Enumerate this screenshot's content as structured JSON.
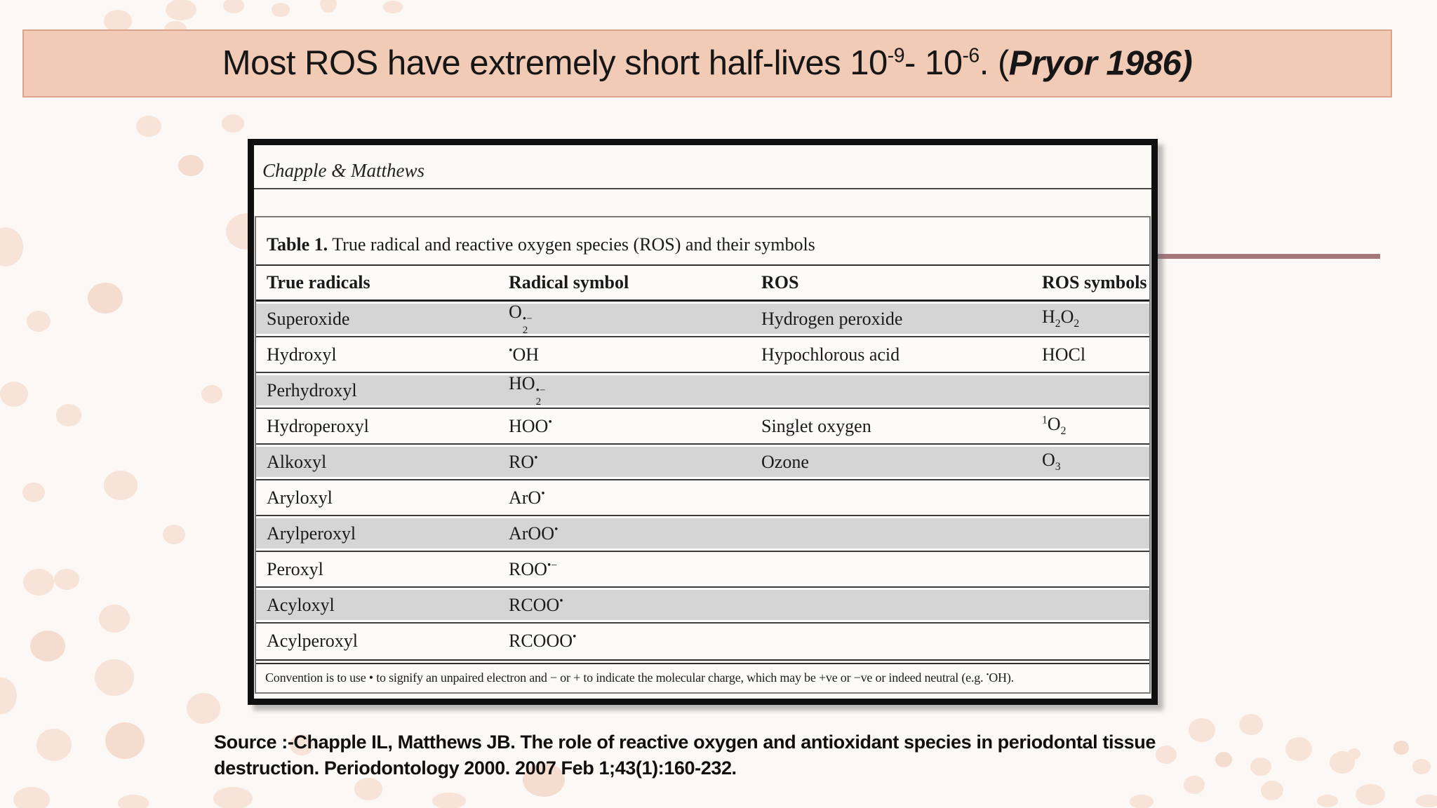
{
  "slide": {
    "title": {
      "main": "Most ROS have extremely short half-lives 10^{-9}- 10^{-6}. (",
      "emphasis": "Pryor 1986)"
    },
    "source_note": "Source :-Chapple IL, Matthews JB. The role of reactive oxygen and antioxidant species in periodontal tissue destruction. Periodontology 2000. 2007 Feb 1;43(1):160-232."
  },
  "figure": {
    "journal_header": "Chapple & Matthews",
    "table": {
      "caption_label": "Table 1.",
      "caption_text": " True radical and reactive oxygen species (ROS) and their symbols",
      "columns": [
        "True radicals",
        "Radical symbol",
        "ROS",
        "ROS symbols"
      ],
      "rows": [
        {
          "radical": "Superoxide",
          "symbol": "O~{2}{•−}",
          "ros": "Hydrogen peroxide",
          "ros_symbol": "H_{2}O_{2}",
          "shaded": true
        },
        {
          "radical": "Hydroxyl",
          "symbol": "^{•}OH",
          "ros": "Hypochlorous acid",
          "ros_symbol": "HOCl",
          "shaded": false
        },
        {
          "radical": "Perhydroxyl",
          "symbol": "HO~{2}{•−}",
          "ros": "",
          "ros_symbol": "",
          "shaded": true
        },
        {
          "radical": "Hydroperoxyl",
          "symbol": "HOO^{•}",
          "ros": "Singlet oxygen",
          "ros_symbol": "^{1}O_{2}",
          "shaded": false
        },
        {
          "radical": "Alkoxyl",
          "symbol": "RO^{•}",
          "ros": "Ozone",
          "ros_symbol": "O_{3}",
          "shaded": true
        },
        {
          "radical": "Aryloxyl",
          "symbol": "ArO^{•}",
          "ros": "",
          "ros_symbol": "",
          "shaded": false
        },
        {
          "radical": "Arylperoxyl",
          "symbol": "ArOO^{•}",
          "ros": "",
          "ros_symbol": "",
          "shaded": true
        },
        {
          "radical": "Peroxyl",
          "symbol": "ROO^{•−}",
          "ros": "",
          "ros_symbol": "",
          "shaded": false
        },
        {
          "radical": "Acyloxyl",
          "symbol": "RCOO^{•}",
          "ros": "",
          "ros_symbol": "",
          "shaded": true
        },
        {
          "radical": "Acylperoxyl",
          "symbol": "RCOOO^{•}",
          "ros": "",
          "ros_symbol": "",
          "shaded": false
        }
      ],
      "footnote": "Convention is to use • to signify an unpaired electron and − or + to indicate the molecular charge, which may be +ve or −ve or indeed neutral (e.g. ^{•}OH)."
    }
  },
  "colors": {
    "page_background": "#FCF8F5",
    "dot": "#F7E3D8",
    "dot_alt": "#F4DCCF",
    "title_bar_bg": "#F2CBB7",
    "title_bar_border": "#DCA48B",
    "accent_line": "#A5787C",
    "table_row_shade": "#D5D5D5",
    "figure_frame": "#101010"
  }
}
